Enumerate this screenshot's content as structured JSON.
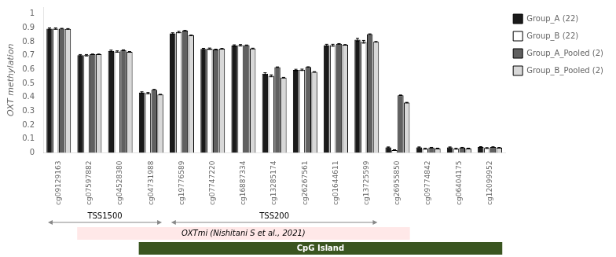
{
  "chart_data": {
    "type": "bar",
    "categories": [
      "cg09129163",
      "cg07597882",
      "cg04528380",
      "cg04731988",
      "cg19776589",
      "cg07747220",
      "cg16887334",
      "cg13285174",
      "cg26267561",
      "cg01644611",
      "cg13725599",
      "cg26955850",
      "cg09774842",
      "cg06404175",
      "cg12099952"
    ],
    "series": [
      {
        "name": "Group_A (22)",
        "color": "#1a1a1a",
        "values": [
          0.895,
          0.703,
          0.735,
          0.435,
          0.86,
          0.748,
          0.773,
          0.57,
          0.597,
          0.775,
          0.815,
          0.04,
          0.04,
          0.04,
          0.042
        ],
        "errors": [
          0.005,
          0.005,
          0.005,
          0.005,
          0.005,
          0.005,
          0.005,
          0.007,
          0.005,
          0.007,
          0.01,
          0.003,
          0.003,
          0.003,
          0.003
        ]
      },
      {
        "name": "Group_B (22)",
        "color": "#ffffff",
        "values": [
          0.895,
          0.703,
          0.73,
          0.43,
          0.87,
          0.75,
          0.775,
          0.555,
          0.598,
          0.775,
          0.8,
          0.02,
          0.03,
          0.03,
          0.035
        ],
        "errors": [
          0.005,
          0.005,
          0.005,
          0.005,
          0.005,
          0.005,
          0.005,
          0.007,
          0.005,
          0.007,
          0.01,
          0.003,
          0.003,
          0.003,
          0.003
        ]
      },
      {
        "name": "Group_A_Pooled (2)",
        "color": "#606060",
        "values": [
          0.895,
          0.71,
          0.74,
          0.455,
          0.88,
          0.745,
          0.775,
          0.617,
          0.618,
          0.785,
          0.855,
          0.415,
          0.038,
          0.038,
          0.042
        ],
        "errors": [
          0.002,
          0.002,
          0.002,
          0.002,
          0.002,
          0.002,
          0.002,
          0.002,
          0.002,
          0.002,
          0.002,
          0.002,
          0.002,
          0.002,
          0.002
        ]
      },
      {
        "name": "Group_B_Pooled (2)",
        "color": "#d8d8d8",
        "values": [
          0.893,
          0.71,
          0.728,
          0.42,
          0.847,
          0.75,
          0.752,
          0.542,
          0.583,
          0.778,
          0.8,
          0.362,
          0.032,
          0.032,
          0.037
        ],
        "errors": [
          0.002,
          0.002,
          0.002,
          0.002,
          0.002,
          0.002,
          0.002,
          0.002,
          0.002,
          0.002,
          0.002,
          0.002,
          0.002,
          0.002,
          0.002
        ]
      }
    ],
    "ylabel": "OXT methylation",
    "ylim": [
      0,
      1.05
    ],
    "yticks": [
      0,
      0.1,
      0.2,
      0.3,
      0.4,
      0.5,
      0.6,
      0.7,
      0.8,
      0.9,
      1
    ],
    "grid": false,
    "legend": "right",
    "annotations": [
      {
        "type": "arrow",
        "text": "TSS1500",
        "from": "cg09129163",
        "to": "cg04731988",
        "color": "#888888"
      },
      {
        "type": "arrow",
        "text": "TSS200",
        "from": "cg19776589",
        "to": "cg13725599",
        "color": "#888888"
      },
      {
        "type": "band",
        "text": "OXTmi (Nishitani S et al., 2021)",
        "from": "cg07597882",
        "to": "cg26955850",
        "color": "#ffe8e8"
      },
      {
        "type": "band",
        "text": "CpG Island",
        "from": "cg04731988",
        "to": "cg12099952",
        "color": "#3a5520"
      }
    ]
  }
}
